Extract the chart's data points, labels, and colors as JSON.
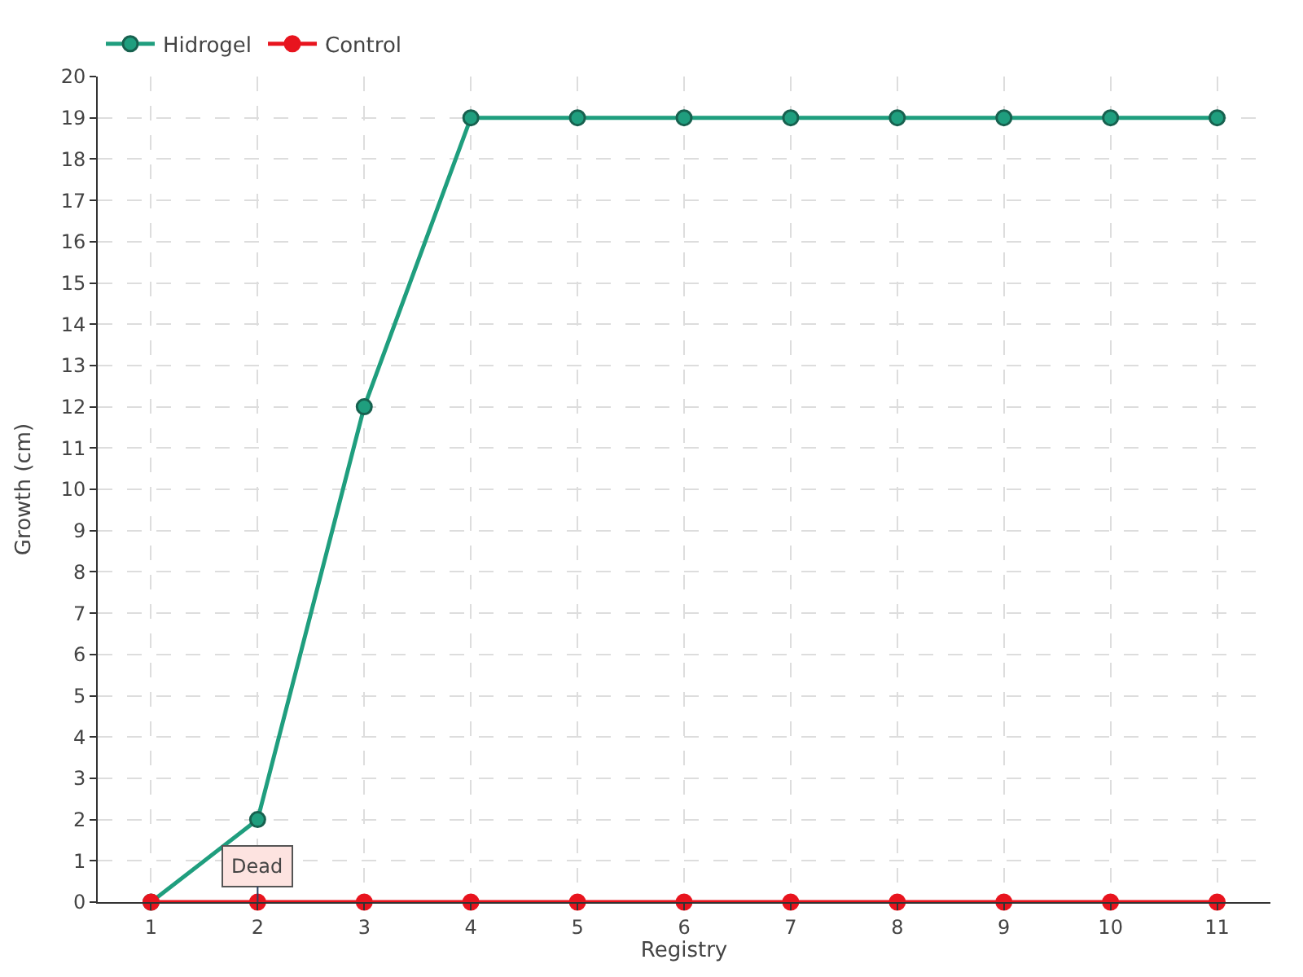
{
  "chart_data": {
    "type": "line",
    "xlabel": "Registry",
    "ylabel": "Growth (cm)",
    "x": [
      1,
      2,
      3,
      4,
      5,
      6,
      7,
      8,
      9,
      10,
      11
    ],
    "series": [
      {
        "name": "Hidrogel",
        "color": "#1f9e7e",
        "values": [
          0,
          2,
          12,
          19,
          19,
          19,
          19,
          19,
          19,
          19,
          19
        ]
      },
      {
        "name": "Control",
        "color": "#e8141e",
        "values": [
          0,
          0,
          0,
          0,
          0,
          0,
          0,
          0,
          0,
          0,
          0
        ]
      }
    ],
    "xlim": [
      0.5,
      11.5
    ],
    "xticks": [
      1,
      2,
      3,
      4,
      5,
      6,
      7,
      8,
      9,
      10,
      11
    ],
    "ylim": [
      0,
      20
    ],
    "yticks": [
      0,
      1,
      2,
      3,
      4,
      5,
      6,
      7,
      8,
      9,
      10,
      11,
      12,
      13,
      14,
      15,
      16,
      17,
      18,
      19,
      20
    ],
    "annotations": [
      {
        "text": "Dead",
        "x": 2,
        "y": 0
      }
    ],
    "grid": true,
    "legend": "top left",
    "marker": "circle",
    "line_style": "solid"
  }
}
